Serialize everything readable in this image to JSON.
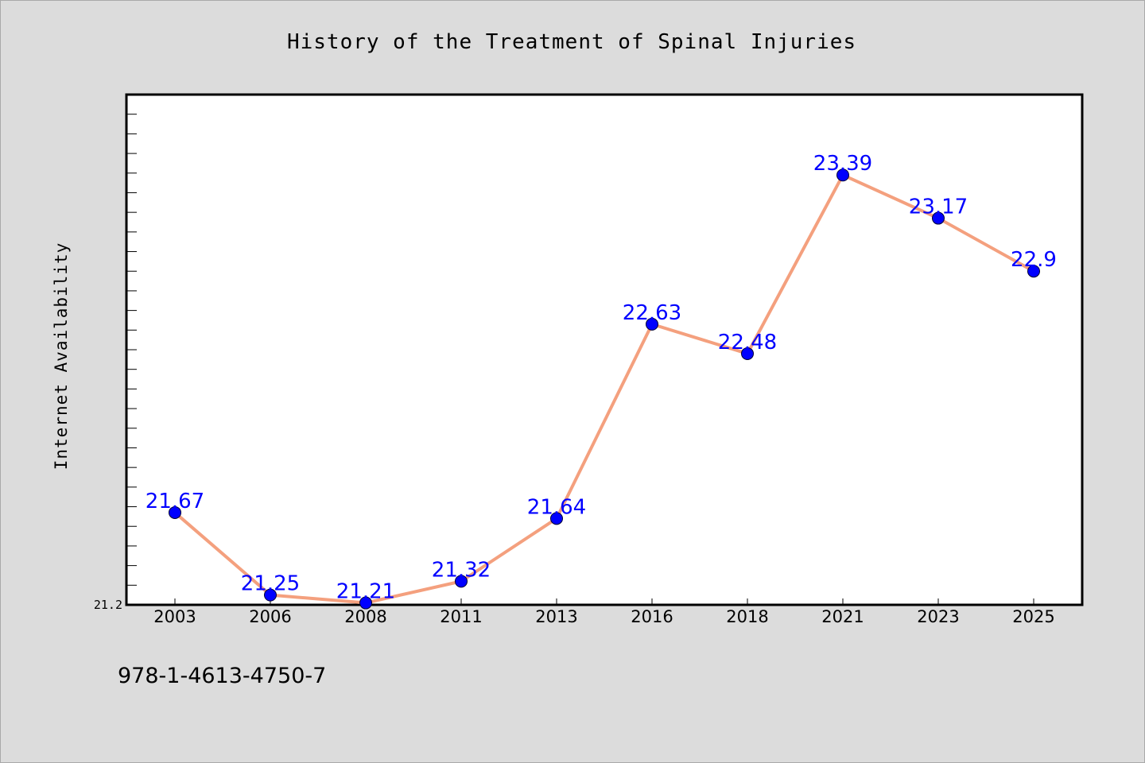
{
  "footer": {
    "code": "978-1-4613-4750-7"
  },
  "chart_data": {
    "type": "line",
    "title": "History of the Treatment of Spinal Injuries",
    "xlabel": "",
    "ylabel": "Internet Availability",
    "categories": [
      "2003",
      "2006",
      "2008",
      "2011",
      "2013",
      "2016",
      "2018",
      "2021",
      "2023",
      "2025"
    ],
    "series": [
      {
        "values": [
          21.67,
          21.25,
          21.21,
          21.32,
          21.64,
          22.63,
          22.48,
          23.39,
          23.17,
          22.9
        ]
      }
    ],
    "data_labels": [
      "21.67",
      "21.25",
      "21.21",
      "21.32",
      "21.64",
      "22.63",
      "22.48",
      "23.39",
      "23.17",
      "22.9"
    ],
    "y_tick_labels": [
      "21.2"
    ],
    "ylim": [
      21.2,
      23.8
    ],
    "grid": false,
    "legend": "none",
    "colors": {
      "line": "#f4a07e",
      "marker": "#0000ff",
      "data_label": "#0000ff",
      "plot_background": "#ffffff",
      "page_background": "#dcdcdc"
    }
  }
}
